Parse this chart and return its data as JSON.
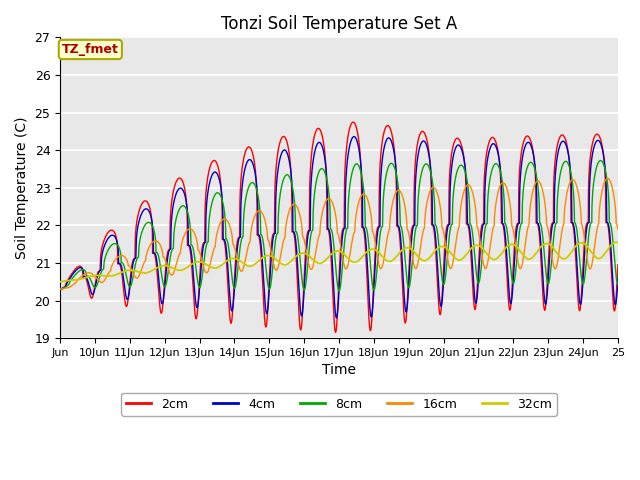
{
  "title": "Tonzi Soil Temperature Set A",
  "xlabel": "Time",
  "ylabel": "Soil Temperature (C)",
  "ylim": [
    19.0,
    27.0
  ],
  "yticks": [
    19.0,
    20.0,
    21.0,
    22.0,
    23.0,
    24.0,
    25.0,
    26.0,
    27.0
  ],
  "xtick_labels": [
    "Jun",
    "10Jun",
    "11Jun",
    "12Jun",
    "13Jun",
    "14Jun",
    "15Jun",
    "16Jun",
    "17Jun",
    "18Jun",
    "19Jun",
    "20Jun",
    "21Jun",
    "22Jun",
    "23Jun",
    "24Jun",
    "25"
  ],
  "colors": {
    "2cm": "#FF0000",
    "4cm": "#0000CC",
    "8cm": "#00AA00",
    "16cm": "#FF8800",
    "32cm": "#CCCC00"
  },
  "label_box": "TZ_fmet",
  "label_box_color": "#FFFFCC",
  "label_box_border": "#AAAA00",
  "label_box_text_color": "#AA0000",
  "background_color": "#E8E8E8",
  "legend_labels": [
    "2cm",
    "4cm",
    "8cm",
    "16cm",
    "32cm"
  ],
  "fig_width": 6.4,
  "fig_height": 4.8,
  "dpi": 100
}
